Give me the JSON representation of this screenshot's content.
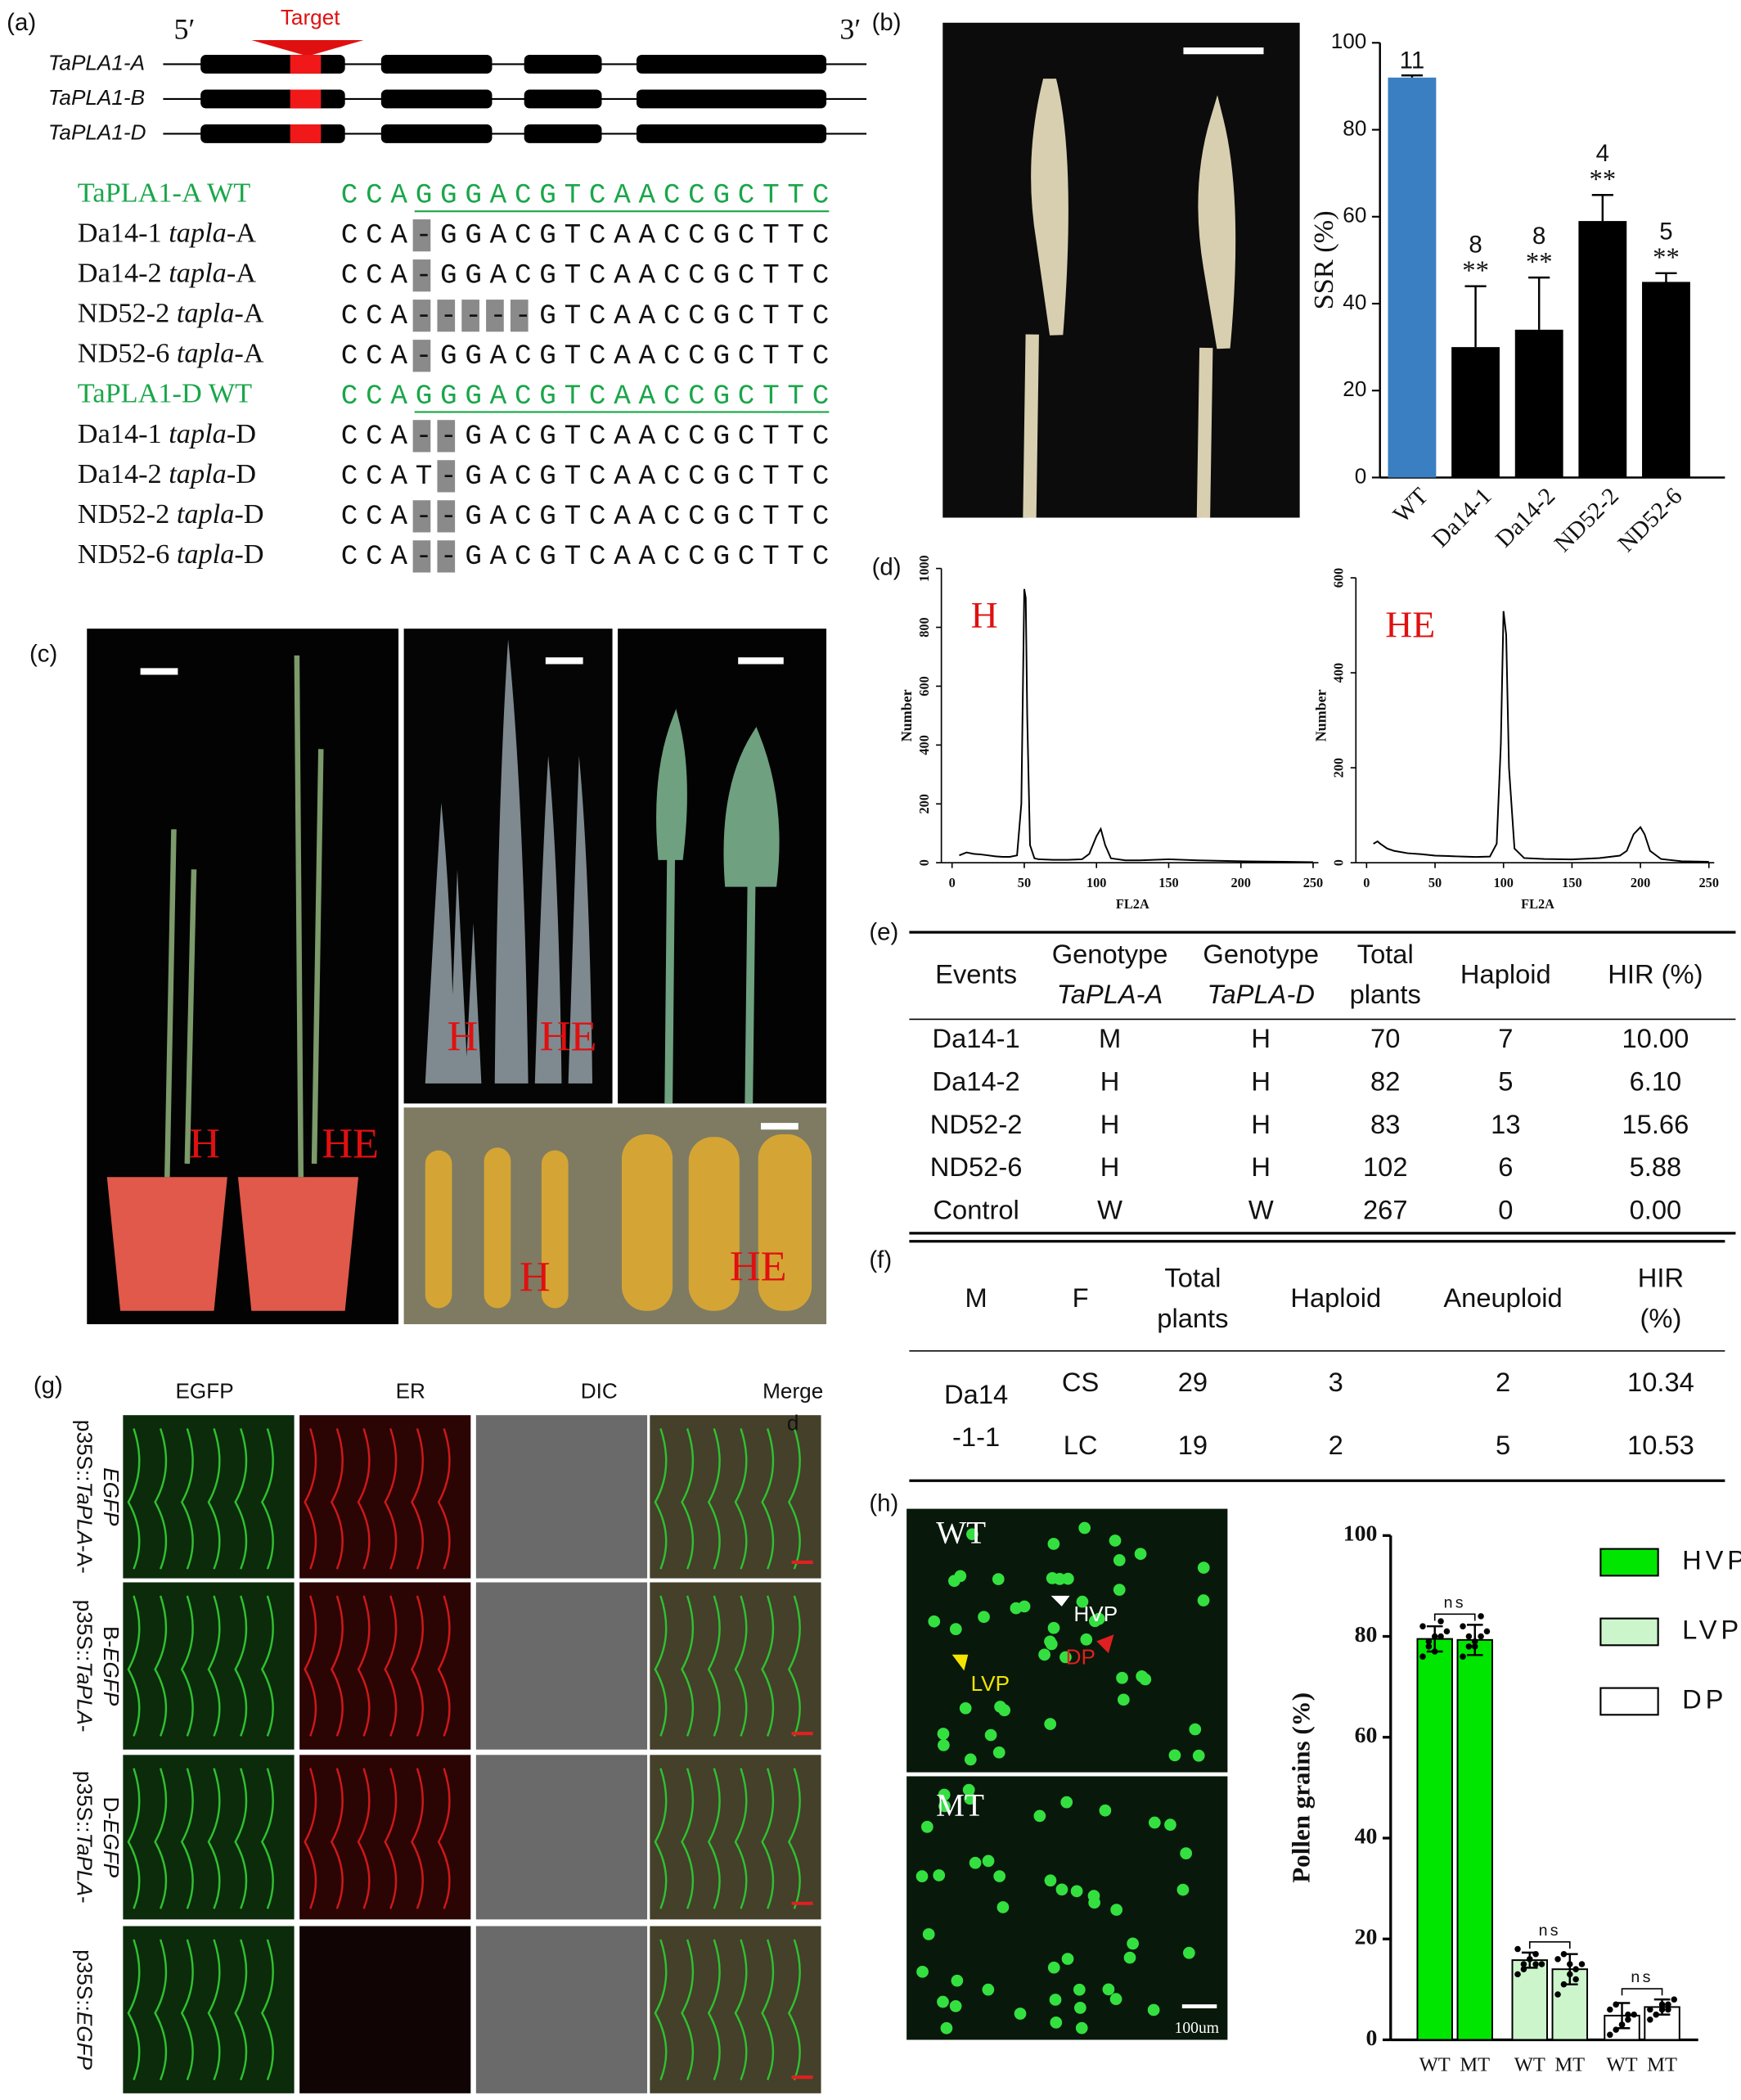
{
  "panel_labels": [
    "(a)",
    "(b)",
    "(c)",
    "(d)",
    "(e)",
    "(f)",
    "(g)",
    "(h)"
  ],
  "panel_a": {
    "five_prime": "5′",
    "three_prime": "3′",
    "target": "Target",
    "genes": [
      "TaPLA1-A",
      "TaPLA1-B",
      "TaPLA1-D"
    ],
    "alignment": [
      {
        "name": "TaPLA1-A WT",
        "seq": "CCAGGGACGTCAACCGCTTC"
      },
      {
        "line": "Da14-1 ",
        "allele": "tapla",
        "suffix": "-A",
        "seq": "CCA-GGACGTCAACCGCTTC"
      },
      {
        "line": "Da14-2 ",
        "allele": "tapla",
        "suffix": "-A",
        "seq": "CCA-GGACGTCAACCGCTTC"
      },
      {
        "line": "ND52-2 ",
        "allele": "tapla",
        "suffix": "-A",
        "seq": "CCA-----GTCAACCGCTTC"
      },
      {
        "line": "ND52-6 ",
        "allele": "tapla",
        "suffix": "-A",
        "seq": "CCA-GGACGTCAACCGCTTC"
      },
      {
        "name": "TaPLA1-D WT",
        "seq": "CCAGGGACGTCAACCGCTTC"
      },
      {
        "line": "Da14-1 ",
        "allele": "tapla",
        "suffix": "-D",
        "seq": "CCA--GACGTCAACCGCTTC"
      },
      {
        "line": "Da14-2 ",
        "allele": "tapla",
        "suffix": "-D",
        "seq": "CCAT-GACGTCAACCGCTTC"
      },
      {
        "line": "ND52-2 ",
        "allele": "tapla",
        "suffix": "-D",
        "seq": "CCA--GACGTCAACCGCTTC"
      },
      {
        "line": "ND52-6 ",
        "allele": "tapla",
        "suffix": "-D",
        "seq": "CCA--GACGTCAACCGCTTC"
      }
    ]
  },
  "panel_c": {
    "labels": [
      "H",
      "HE"
    ]
  },
  "panel_g": {
    "columns": [
      "EGFP",
      "ER",
      "DIC",
      [
        "Merge",
        "d"
      ]
    ],
    "rows": [
      [
        {
          "t": "p35S::"
        },
        {
          "t": "TaPLA",
          "i": true
        },
        {
          "t": "-A-"
        },
        {
          "t": "EGFP",
          "i": true,
          "br": true
        }
      ],
      [
        {
          "t": "p35S::"
        },
        {
          "t": "TaPLA",
          "i": true
        },
        {
          "t": "-"
        },
        {
          "t": "B-",
          "br": true
        },
        {
          "t": "EGFP",
          "i": true
        }
      ],
      [
        {
          "t": "p35S::"
        },
        {
          "t": "TaPLA",
          "i": true
        },
        {
          "t": "-"
        },
        {
          "t": "D-",
          "br": true
        },
        {
          "t": "EGFP",
          "i": true
        }
      ],
      [
        {
          "t": "p35S::"
        },
        {
          "t": "EGFP",
          "i": true
        }
      ]
    ]
  },
  "panel_h": {
    "image_labels": [
      "WT",
      "MT"
    ],
    "arrows": [
      "HVP",
      "LVP",
      "DP"
    ],
    "scale": "100um"
  },
  "table_e": {
    "header": [
      [
        "Events"
      ],
      [
        "Genotype",
        "TaPLA-A"
      ],
      [
        "Genotype",
        "TaPLA-D"
      ],
      [
        "Total",
        "plants"
      ],
      [
        "Haploid"
      ],
      [
        "HIR (%)"
      ]
    ],
    "rows": [
      [
        "Da14-1",
        "M",
        "H",
        "70",
        "7",
        "10.00"
      ],
      [
        "Da14-2",
        "H",
        "H",
        "82",
        "5",
        "6.10"
      ],
      [
        "ND52-2",
        "H",
        "H",
        "83",
        "13",
        "15.66"
      ],
      [
        "ND52-6",
        "H",
        "H",
        "102",
        "6",
        "5.88"
      ],
      [
        "Control",
        "W",
        "W",
        "267",
        "0",
        "0.00"
      ]
    ]
  },
  "table_f": {
    "header": [
      [
        "M"
      ],
      [
        "F"
      ],
      [
        "Total",
        "plants"
      ],
      [
        "Haploid"
      ],
      [
        "Aneuploid"
      ],
      [
        "HIR",
        "(%)"
      ]
    ],
    "group": [
      "Da14",
      "-1-1"
    ],
    "rows": [
      [
        "CS",
        "29",
        "3",
        "2",
        "10.34"
      ],
      [
        "LC",
        "19",
        "2",
        "5",
        "10.53"
      ]
    ]
  },
  "chart_data": [
    {
      "type": "bar",
      "y_label": "SSR (%)",
      "categories": [
        "WT",
        "Da14-1",
        "Da14-2",
        "ND52-2",
        "ND52-6"
      ],
      "values": [
        92,
        30,
        34,
        59,
        45
      ],
      "errors": [
        0.5,
        14,
        12,
        6,
        2
      ],
      "sample_sizes": [
        11,
        8,
        8,
        4,
        5
      ],
      "significance": [
        null,
        "**",
        "**",
        "**",
        "**"
      ],
      "colors": [
        "#3a7fc1",
        "#000000",
        "#000000",
        "#000000",
        "#000000"
      ],
      "ylim": [
        0,
        100
      ],
      "yticks": [
        0,
        20,
        40,
        60,
        80,
        100
      ]
    },
    {
      "type": "line",
      "annotation": "H",
      "x_label": "FL2A",
      "y_label": "Number",
      "color": "#000000",
      "x": [
        5,
        10,
        15,
        20,
        25,
        30,
        35,
        40,
        45,
        48,
        50,
        51,
        52,
        54,
        57,
        60,
        70,
        80,
        90,
        95,
        100,
        103,
        106,
        110,
        120,
        130,
        150,
        170,
        200,
        230,
        250
      ],
      "values": [
        25,
        35,
        30,
        28,
        25,
        22,
        20,
        20,
        25,
        200,
        930,
        900,
        500,
        60,
        15,
        12,
        10,
        10,
        12,
        30,
        90,
        115,
        60,
        15,
        8,
        8,
        12,
        8,
        5,
        3,
        2
      ],
      "xlim": [
        0,
        250
      ],
      "xticks": [
        0,
        50,
        100,
        150,
        200,
        250
      ],
      "ylim": [
        0,
        1000
      ],
      "yticks": [
        0,
        200,
        400,
        600,
        800,
        1000
      ]
    },
    {
      "type": "line",
      "annotation": "HE",
      "x_label": "FL2A",
      "y_label": "Number",
      "color": "#000000",
      "x": [
        5,
        8,
        10,
        15,
        20,
        30,
        40,
        50,
        60,
        70,
        80,
        90,
        95,
        98,
        100,
        102,
        104,
        108,
        115,
        130,
        150,
        170,
        185,
        190,
        195,
        200,
        203,
        207,
        215,
        230,
        250
      ],
      "values": [
        40,
        45,
        40,
        30,
        25,
        20,
        18,
        15,
        14,
        13,
        12,
        13,
        40,
        250,
        530,
        480,
        200,
        30,
        10,
        8,
        7,
        10,
        15,
        25,
        60,
        75,
        60,
        25,
        8,
        3,
        2
      ],
      "xlim": [
        0,
        250
      ],
      "xticks": [
        0,
        50,
        100,
        150,
        200,
        250
      ],
      "ylim": [
        0,
        600
      ],
      "yticks": [
        0,
        200,
        400,
        600
      ]
    },
    {
      "type": "grouped_bar",
      "y_label": "Pollen grains (%)",
      "categories": [
        "WT",
        "MT"
      ],
      "series": [
        {
          "name": "HVP",
          "color": "#00e600",
          "values": [
            79.5,
            79.3
          ],
          "errors": [
            2.5,
            3
          ],
          "comparison": "ns",
          "points": [
            [
              76,
              78,
              80,
              80,
              81,
              82,
              79,
              77,
              83
            ],
            [
              76,
              78,
              79,
              80,
              81,
              82,
              80,
              78,
              84
            ]
          ]
        },
        {
          "name": "LVP",
          "color": "#ccf5cc",
          "values": [
            15.8,
            14
          ],
          "errors": [
            1.5,
            3
          ],
          "comparison": "ns",
          "points": [
            [
              13,
              15,
              16,
              17,
              15,
              18,
              14,
              16,
              15
            ],
            [
              9,
              11,
              13,
              14,
              15,
              16,
              17,
              15,
              12
            ]
          ]
        },
        {
          "name": "DP",
          "color": "#ffffff",
          "values": [
            4.8,
            6.5
          ],
          "errors": [
            2.5,
            1.5
          ],
          "comparison": "ns",
          "points": [
            [
              1,
              2,
              3,
              4,
              5,
              6,
              7,
              3,
              5
            ],
            [
              4,
              5,
              6,
              7,
              8,
              6,
              5,
              7,
              6
            ]
          ]
        }
      ],
      "ylim": [
        0,
        100
      ],
      "yticks": [
        0,
        20,
        40,
        60,
        80,
        100
      ],
      "legend": "top-right"
    }
  ]
}
